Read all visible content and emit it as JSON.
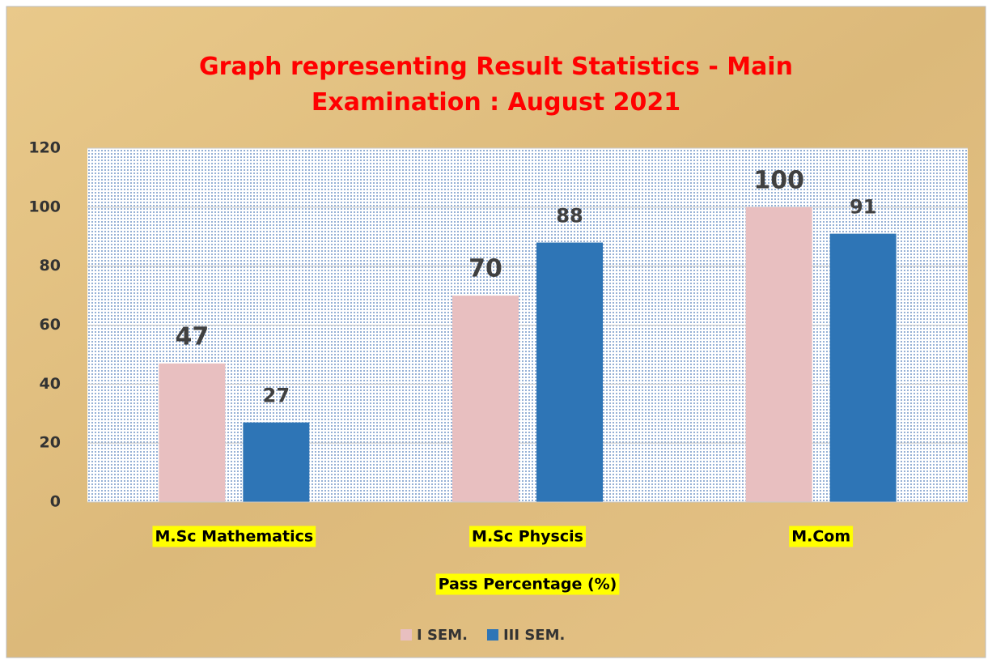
{
  "chart_data": {
    "type": "bar",
    "title": "Graph representing Result Statistics - Main Examination : August 2021",
    "categories": [
      "M.Sc Mathematics",
      "M.Sc Physcis",
      "M.Com"
    ],
    "series": [
      {
        "name": "I SEM.",
        "color": "#e8bfc0",
        "values": [
          47,
          70,
          100
        ]
      },
      {
        "name": "III SEM.",
        "color": "#2e75b6",
        "values": [
          27,
          88,
          91
        ]
      }
    ],
    "x_label": "Pass Percentage (%)",
    "ylim": [
      0,
      120
    ],
    "yticks": [
      0,
      20,
      40,
      60,
      80,
      100,
      120
    ],
    "grid": true,
    "legend": "bottom"
  }
}
